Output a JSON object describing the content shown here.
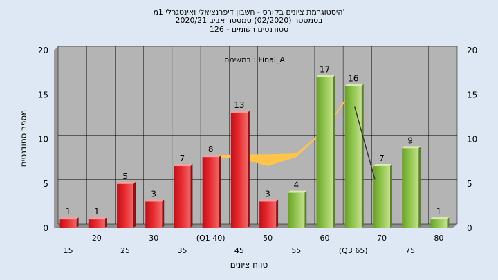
{
  "chart_data": {
    "type": "bar",
    "title": [
      "היסטוגרמת ציונים בקורס - חשבון דיפרנציאלי ואינטגרלי 1מ'",
      "בסמסטר  (02/2020)  סמסטר אביב 2020/21",
      "סטודנטים רשומים - 126"
    ],
    "annotation": "במשימה : Final_A",
    "xlabel": "טווח ציונים",
    "ylabel": "מספר סטודנטים",
    "ylim": [
      0,
      20
    ],
    "yticks": [
      0,
      5,
      10,
      15,
      20
    ],
    "grid": true,
    "categories": [
      "15",
      "20",
      "25",
      "30",
      "35",
      "(Q1 40)",
      "45",
      "50",
      "55",
      "60",
      "(Q3 65)",
      "70",
      "75",
      "80"
    ],
    "values": [
      1,
      1,
      5,
      3,
      7,
      8,
      13,
      3,
      4,
      17,
      16,
      7,
      9,
      1
    ],
    "bar_colors": [
      "red",
      "red",
      "red",
      "red",
      "red",
      "red",
      "red",
      "red",
      "green",
      "green",
      "green",
      "green",
      "green",
      "green"
    ],
    "area_band": {
      "lower": [
        null,
        null,
        null,
        null,
        null,
        7.9,
        7.9,
        7.0,
        8.0,
        11.0,
        15.5,
        null,
        null,
        null
      ],
      "upper": [
        null,
        null,
        null,
        null,
        null,
        8.2,
        8.3,
        8.3,
        8.4,
        11.1,
        15.9,
        null,
        null,
        null
      ]
    },
    "connector_line": [
      [
        10,
        16
      ],
      [
        11,
        5.5
      ]
    ],
    "colors": {
      "red": "#e8282e",
      "green": "#8cc44a",
      "area": "#ffc44a",
      "plot_bg": "#b4b4b4"
    }
  }
}
